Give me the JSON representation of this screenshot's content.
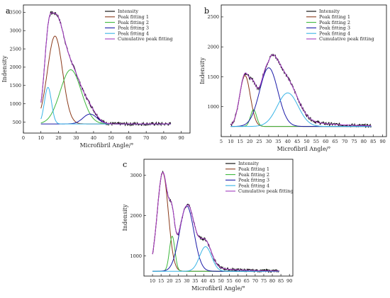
{
  "chart_data": [
    {
      "panel": "a",
      "type": "line",
      "xlabel": "Microfibril Angle/°",
      "ylabel": "Indensity",
      "xlim": [
        0,
        95
      ],
      "ylim": [
        200,
        3700
      ],
      "xticks": [
        0,
        10,
        20,
        30,
        40,
        50,
        60,
        70,
        80,
        90
      ],
      "yticks": [
        500,
        1000,
        1500,
        2000,
        2500,
        3000,
        3500
      ],
      "xrange": [
        10,
        84
      ],
      "baseline": 450,
      "legend_position": "top-right",
      "series": [
        {
          "name": "Intensity",
          "color": "#000000",
          "kind": "raw"
        },
        {
          "name": "Peak fitting 1",
          "color": "#8b3a1a",
          "peak": {
            "center": 18,
            "height": 2400,
            "width": 4.3
          }
        },
        {
          "name": "Peak fitting 2",
          "color": "#3cb83c",
          "peak": {
            "center": 27,
            "height": 1480,
            "width": 6.0
          }
        },
        {
          "name": "Peak fitting 3",
          "color": "#1a1aa8",
          "peak": {
            "center": 38,
            "height": 270,
            "width": 4.0
          }
        },
        {
          "name": "Peak fitting 4",
          "color": "#39b4e6",
          "peak": {
            "center": 14,
            "height": 1000,
            "width": 2.0
          }
        },
        {
          "name": "Cumulative peak fitting",
          "color": "#a23ec0",
          "kind": "sum"
        }
      ]
    },
    {
      "panel": "b",
      "type": "line",
      "xlabel": "Microfibril Angle/°",
      "ylabel": "Indensity",
      "xlim": [
        5,
        92
      ],
      "ylim": [
        500,
        2700
      ],
      "xticks": [
        5,
        10,
        15,
        20,
        25,
        30,
        35,
        40,
        45,
        50,
        55,
        60,
        65,
        70,
        75,
        80,
        85,
        90
      ],
      "yticks": [
        1000,
        1500,
        2000,
        2500
      ],
      "xrange": [
        10,
        84
      ],
      "baseline": 670,
      "legend_position": "top-right",
      "series": [
        {
          "name": "Intensity",
          "color": "#000000",
          "kind": "raw"
        },
        {
          "name": "Peak fitting 1",
          "color": "#8b3a1a",
          "peak": {
            "center": 17.5,
            "height": 850,
            "width": 2.8
          }
        },
        {
          "name": "Peak fitting 2",
          "color": "#3cb83c",
          "peak": {
            "center": 22,
            "height": 280,
            "width": 1.6
          }
        },
        {
          "name": "Peak fitting 3",
          "color": "#1a1aa8",
          "peak": {
            "center": 30,
            "height": 980,
            "width": 4.8
          }
        },
        {
          "name": "Peak fitting 4",
          "color": "#39b4e6",
          "peak": {
            "center": 40,
            "height": 560,
            "width": 5.5
          }
        },
        {
          "name": "Cumulative peak fitting",
          "color": "#a23ec0",
          "kind": "sum",
          "tail": {
            "height": 300,
            "decay": 16
          }
        }
      ]
    },
    {
      "panel": "c",
      "type": "line",
      "xlabel": "Microfibril Angle/°",
      "ylabel": "Indensity",
      "xlim": [
        5,
        92
      ],
      "ylim": [
        500,
        3400
      ],
      "xticks": [
        10,
        15,
        20,
        25,
        30,
        35,
        40,
        45,
        50,
        55,
        60,
        65,
        70,
        75,
        80,
        85,
        90
      ],
      "yticks": [
        1000,
        2000,
        3000
      ],
      "xrange": [
        10,
        84
      ],
      "baseline": 620,
      "legend_position": "top-right",
      "series": [
        {
          "name": "Intensity",
          "color": "#000000",
          "kind": "raw"
        },
        {
          "name": "Peak fitting 1",
          "color": "#8b3a1a",
          "peak": {
            "center": 16,
            "height": 2450,
            "width": 3.2
          }
        },
        {
          "name": "Peak fitting 2",
          "color": "#3cb83c",
          "peak": {
            "center": 21.5,
            "height": 870,
            "width": 1.6
          }
        },
        {
          "name": "Peak fitting 3",
          "color": "#1a1aa8",
          "peak": {
            "center": 30,
            "height": 1620,
            "width": 4.2
          }
        },
        {
          "name": "Peak fitting 4",
          "color": "#39b4e6",
          "peak": {
            "center": 41,
            "height": 610,
            "width": 3.5
          }
        },
        {
          "name": "Cumulative peak fitting",
          "color": "#a23ec0",
          "kind": "sum",
          "tail": {
            "height": 280,
            "decay": 14
          }
        }
      ]
    }
  ]
}
